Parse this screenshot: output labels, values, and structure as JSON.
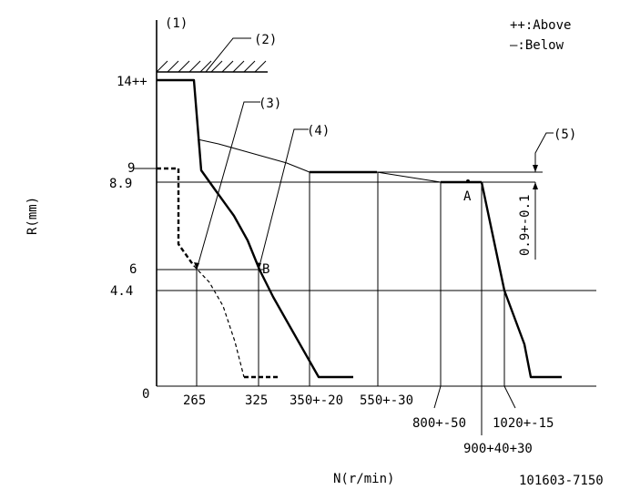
{
  "legend": {
    "above": "++:Above",
    "below": "—:Below"
  },
  "labels": {
    "c1": "(1)",
    "c2": "(2)",
    "c3": "(3)",
    "c4": "(4)",
    "c5": "(5)",
    "pointA": "A",
    "pointB": "B"
  },
  "axes": {
    "ylabel": "R(mm)",
    "xlabel": "N(r/min)",
    "yticks": [
      "14++",
      "9",
      "8.9",
      "6",
      "4.4",
      "0"
    ],
    "xticks": [
      "265",
      "325",
      "350+-20",
      "550+-30",
      "800+-50",
      "900+40+30",
      "1020+-15"
    ]
  },
  "dimension": "0.9+-0.1",
  "code": "101603-7150"
}
